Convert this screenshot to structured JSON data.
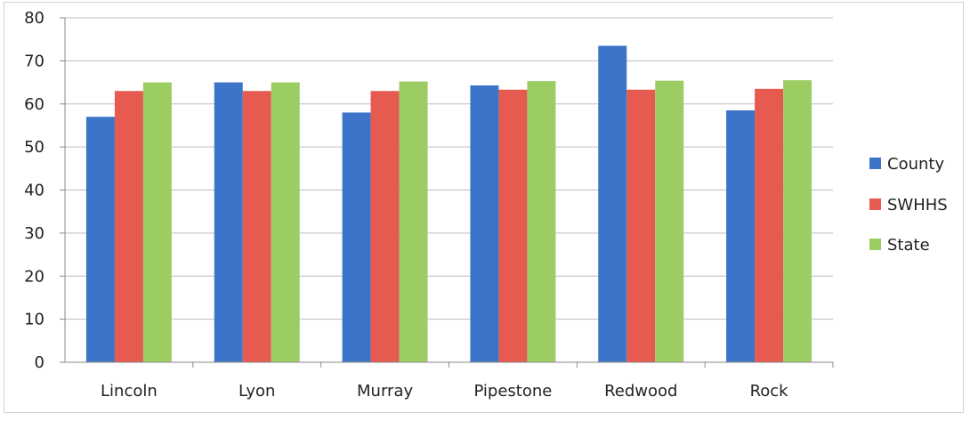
{
  "chart_data": {
    "type": "bar",
    "title": "",
    "xlabel": "",
    "ylabel": "",
    "categories": [
      "Lincoln",
      "Lyon",
      "Murray",
      "Pipestone",
      "Redwood",
      "Rock"
    ],
    "series": [
      {
        "name": "County",
        "values": [
          57,
          65,
          58,
          64.3,
          73.5,
          58.5
        ]
      },
      {
        "name": "SWHHS",
        "values": [
          63,
          63,
          63,
          63.3,
          63.3,
          63.5
        ]
      },
      {
        "name": "State",
        "values": [
          65,
          65,
          65.2,
          65.3,
          65.4,
          65.5
        ]
      }
    ],
    "ylim": [
      0,
      80
    ],
    "yticks": [
      "0",
      "10",
      "20",
      "30",
      "40",
      "50",
      "60",
      "70",
      "80"
    ],
    "grid": true,
    "legend_position": "right",
    "colors": {
      "County": "#3c74c8",
      "SWHHS": "#e65a50",
      "State": "#9ccd62"
    }
  }
}
